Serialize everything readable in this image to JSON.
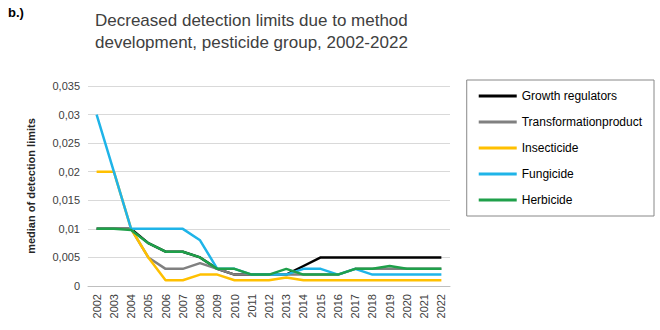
{
  "chart_data": {
    "type": "line",
    "title": "Decreased detection limits due to method development, pesticide group, 2002-2022",
    "annotations": [
      "b.)"
    ],
    "y_label": "median of detection limits",
    "categories": [
      "2002",
      "2003",
      "2004",
      "2005",
      "2006",
      "2007",
      "2008",
      "2009",
      "2010",
      "2011",
      "2012",
      "2013",
      "2014",
      "2015",
      "2016",
      "2017",
      "2018",
      "2019",
      "2020",
      "2021",
      "2022"
    ],
    "series": [
      {
        "name": "Growth regulators",
        "color": "#000000",
        "values": [
          0.01,
          0.01,
          0.01,
          0.0075,
          0.006,
          0.006,
          0.005,
          0.003,
          0.002,
          0.002,
          0.002,
          0.002,
          0.0035,
          0.005,
          0.005,
          0.005,
          0.005,
          0.005,
          0.005,
          0.005,
          0.005
        ]
      },
      {
        "name": "Transformationproduct",
        "color": "#808080",
        "values": [
          0.01,
          0.01,
          0.01,
          0.005,
          0.003,
          0.003,
          0.004,
          0.003,
          0.002,
          0.002,
          0.002,
          0.002,
          0.002,
          0.002,
          0.002,
          0.003,
          0.003,
          0.003,
          0.003,
          0.003,
          0.003
        ]
      },
      {
        "name": "Insecticide",
        "color": "#FFC000",
        "values": [
          0.02,
          0.02,
          0.01,
          0.005,
          0.001,
          0.001,
          0.002,
          0.002,
          0.001,
          0.001,
          0.001,
          0.0015,
          0.001,
          0.001,
          0.001,
          0.001,
          0.001,
          0.001,
          0.001,
          0.001,
          0.001
        ]
      },
      {
        "name": "Fungicide",
        "color": "#1FB4E8",
        "values": [
          0.03,
          0.02,
          0.01,
          0.01,
          0.01,
          0.01,
          0.008,
          0.003,
          0.003,
          0.002,
          0.002,
          0.002,
          0.003,
          0.003,
          0.002,
          0.003,
          0.002,
          0.002,
          0.002,
          0.002,
          0.002
        ]
      },
      {
        "name": "Herbicide",
        "color": "#1FA04A",
        "values": [
          0.01,
          0.01,
          0.0098,
          0.0075,
          0.006,
          0.006,
          0.005,
          0.003,
          0.003,
          0.002,
          0.002,
          0.003,
          0.002,
          0.002,
          0.002,
          0.003,
          0.003,
          0.0035,
          0.003,
          0.003,
          0.003
        ]
      }
    ],
    "ylim": [
      0,
      0.035
    ],
    "yticks": [
      0,
      {
        "value": 0.005,
        "label": "0,005"
      },
      {
        "value": 0.01,
        "label": "0,01"
      },
      {
        "value": 0.015,
        "label": "0,015"
      },
      {
        "value": 0.02,
        "label": "0,02"
      },
      {
        "value": 0.025,
        "label": "0,025"
      },
      {
        "value": 0.03,
        "label": "0,03"
      },
      {
        "value": 0.035,
        "label": "0,035"
      }
    ],
    "grid": true,
    "legend": "right"
  }
}
